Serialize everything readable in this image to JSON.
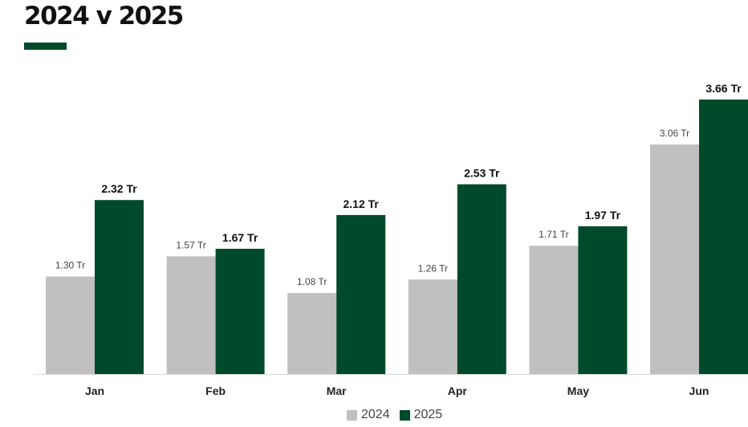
{
  "chart_data": {
    "type": "bar",
    "title": "2024 v 2025",
    "categories": [
      "Jan",
      "Feb",
      "Mar",
      "Apr",
      "May",
      "Jun"
    ],
    "series": [
      {
        "name": "2024",
        "values": [
          1.3,
          1.57,
          1.08,
          1.26,
          1.71,
          3.06
        ],
        "labels": [
          "1.30 Tr",
          "1.57 Tr",
          "1.08 Tr",
          "1.26 Tr",
          "1.71 Tr",
          "3.06 Tr"
        ],
        "color": "#c0c0c0"
      },
      {
        "name": "2025",
        "values": [
          2.32,
          1.67,
          2.12,
          2.53,
          1.97,
          3.66
        ],
        "labels": [
          "2.32 Tr",
          "1.67 Tr",
          "2.12 Tr",
          "2.53  Tr",
          "1.97 Tr",
          "3.66 Tr"
        ],
        "color": "#004a2c"
      }
    ],
    "ylim": [
      0,
      3.66
    ],
    "xlabel": "",
    "ylabel": "",
    "grid": false,
    "legend": "bottom-center"
  },
  "accent_color": "#004a2c"
}
